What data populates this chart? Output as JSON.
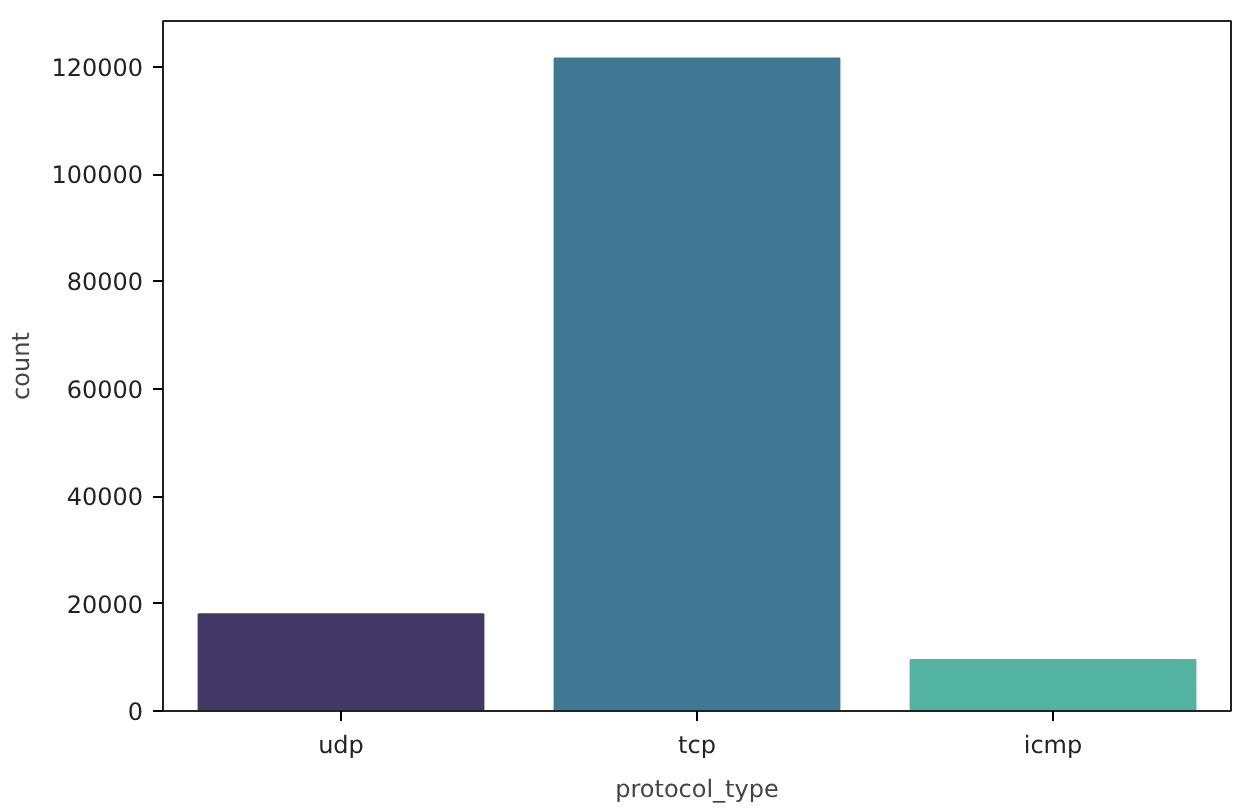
{
  "chart_data": {
    "type": "bar",
    "xlabel": "protocol_type",
    "ylabel": "count",
    "categories": [
      "udp",
      "tcp",
      "icmp"
    ],
    "values": [
      18000,
      121500,
      9500
    ],
    "colors": [
      "#433866",
      "#3f7794",
      "#52b3a0"
    ],
    "ylim": [
      0,
      128500
    ],
    "yticks": [
      0,
      20000,
      40000,
      60000,
      80000,
      100000,
      120000
    ],
    "grid": false
  }
}
